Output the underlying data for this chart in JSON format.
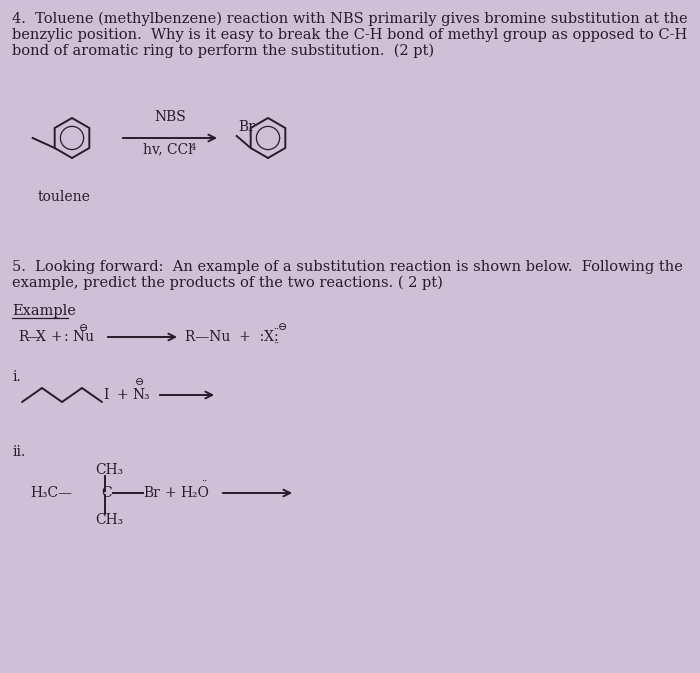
{
  "bg_color": "#cfc0d8",
  "text_color": "#2a1a2a",
  "q4_line1": "4.  Toluene (methylbenzene) reaction with NBS primarily gives bromine substitution at the",
  "q4_line2": "benzylic position.  Why is it easy to break the C-H bond of methyl group as opposed to C-H",
  "q4_line3": "bond of aromatic ring to perform the substitution.  (2 pt)",
  "q5_line1": "5.  Looking forward:  An example of a substitution reaction is shown below.  Following the",
  "q5_line2": "example, predict the products of the two reactions. ( 2 pt)",
  "label_example": "Example",
  "label_i": "i.",
  "label_ii": "ii.",
  "label_toulene": "toulene",
  "nbs_label": "NBS",
  "hv_label": "hv, CCl",
  "font_size_body": 10.5,
  "font_size_chem": 10,
  "font_size_small": 8
}
